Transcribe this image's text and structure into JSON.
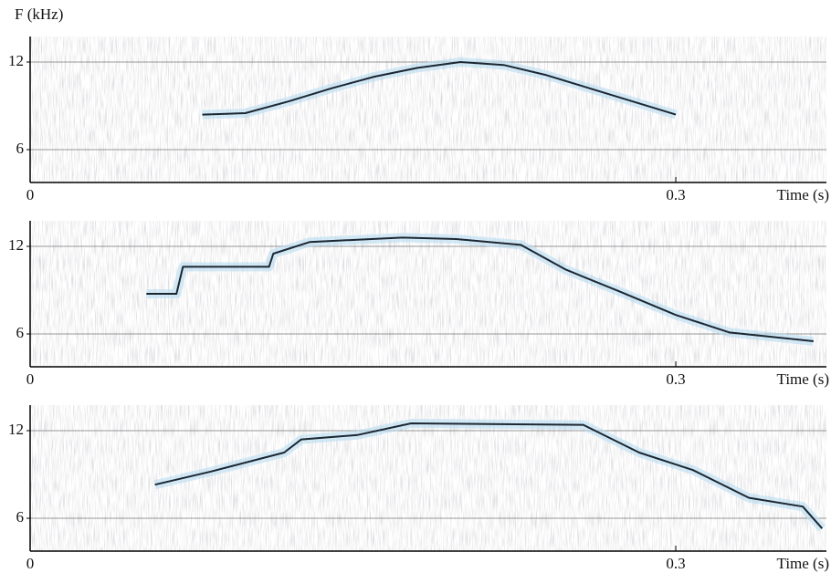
{
  "chart_data": [
    {
      "type": "line",
      "ylabel": "F (kHz)",
      "xlabel": "Time (s)",
      "x": [
        0.08,
        0.1,
        0.12,
        0.14,
        0.16,
        0.18,
        0.2,
        0.22,
        0.24,
        0.26,
        0.28,
        0.3
      ],
      "values": [
        8.4,
        8.5,
        9.3,
        10.2,
        11,
        11.6,
        12,
        11.8,
        11.1,
        10.2,
        9.3,
        8.4
      ],
      "color": "#1b2733",
      "xlim": [
        0,
        0.37
      ],
      "ylim": [
        3.75,
        13.75
      ],
      "xticks": [
        0,
        0.3
      ],
      "yticks": [
        6,
        12
      ],
      "grid": true
    },
    {
      "type": "line",
      "xlabel": "Time (s)",
      "x": [
        0.054,
        0.068,
        0.071,
        0.111,
        0.113,
        0.13,
        0.173,
        0.198,
        0.228,
        0.249,
        0.274,
        0.3,
        0.325,
        0.364
      ],
      "values": [
        8.75,
        8.75,
        10.6,
        10.6,
        11.5,
        12.3,
        12.6,
        12.5,
        12.1,
        10.4,
        8.9,
        7.3,
        6.1,
        5.5
      ],
      "color": "#1b2733",
      "xlim": [
        0,
        0.37
      ],
      "ylim": [
        3.75,
        13.75
      ],
      "xticks": [
        0,
        0.3
      ],
      "yticks": [
        6,
        12
      ],
      "grid": true
    },
    {
      "type": "line",
      "xlabel": "Time (s)",
      "x": [
        0.058,
        0.084,
        0.118,
        0.126,
        0.152,
        0.177,
        0.257,
        0.283,
        0.308,
        0.334,
        0.359,
        0.368
      ],
      "values": [
        8.3,
        9.2,
        10.5,
        11.4,
        11.7,
        12.5,
        12.4,
        10.5,
        9.3,
        7.4,
        6.8,
        5.3
      ],
      "color": "#1b2733",
      "xlim": [
        0,
        0.37
      ],
      "ylim": [
        3.75,
        13.75
      ],
      "xticks": [
        0,
        0.3
      ],
      "yticks": [
        6,
        12
      ],
      "grid": true
    }
  ]
}
